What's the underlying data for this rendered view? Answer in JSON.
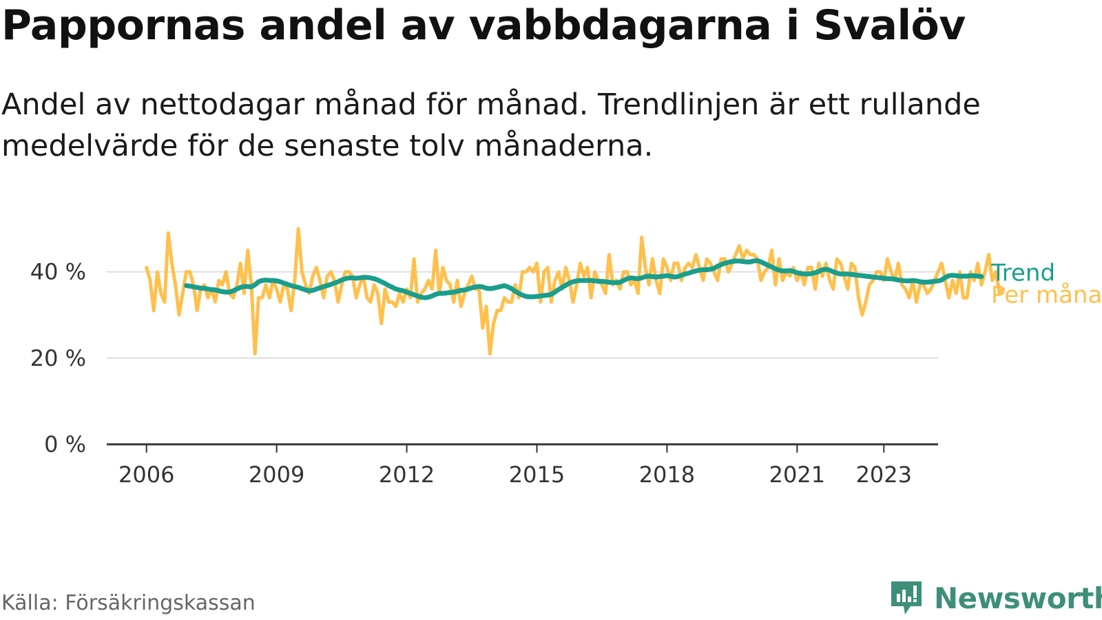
{
  "header": {
    "title": "Pappornas andel av vabbdagarna i Svalöv",
    "subtitle": "Andel av nettodagar månad för månad. Trendlinjen är ett rullande medelvärde för de senaste tolv månaderna."
  },
  "footer": {
    "source": "Källa: Försäkringskassan",
    "brand": "Newsworthy"
  },
  "colors": {
    "monthly": "#ffc04c",
    "trend": "#1a9e8c",
    "grid": "#dddddd",
    "axis": "#333333",
    "brand": "#3e8f7a"
  },
  "chart_data": {
    "type": "line",
    "title": "Pappornas andel av vabbdagarna i Svalöv",
    "xlabel": "",
    "ylabel": "",
    "ylim": [
      0,
      50
    ],
    "xlim": [
      "2005-02",
      "2024-04"
    ],
    "y_ticks": [
      0,
      20,
      40
    ],
    "y_tick_labels": [
      "0 %",
      "20 %",
      "40 %"
    ],
    "x_ticks": [
      "2006-01",
      "2009-01",
      "2012-01",
      "2015-01",
      "2018-01",
      "2021-01",
      "2023-01"
    ],
    "x_tick_labels": [
      "2006",
      "2009",
      "2012",
      "2015",
      "2018",
      "2021",
      "2023"
    ],
    "grid": true,
    "legend": "inline labels at the right end of each line",
    "series": [
      {
        "name": "Per månad",
        "x_start": "2006-01",
        "values": [
          41,
          38,
          31,
          40,
          35,
          33,
          49,
          42,
          37,
          30,
          35,
          40,
          40,
          37,
          31,
          36,
          37,
          34,
          36,
          33,
          38,
          37,
          40,
          35,
          34,
          37,
          42,
          35,
          45,
          37,
          21,
          34,
          34,
          37,
          34,
          38,
          36,
          33,
          37,
          36,
          31,
          38,
          50,
          40,
          37,
          35,
          39,
          41,
          38,
          34,
          39,
          40,
          38,
          33,
          37,
          40,
          40,
          39,
          34,
          37,
          39,
          34,
          33,
          37,
          35,
          28,
          36,
          33,
          33,
          32,
          35,
          33,
          36,
          34,
          43,
          33,
          35,
          36,
          38,
          36,
          45,
          35,
          41,
          38,
          37,
          33,
          38,
          32,
          35,
          37,
          39,
          36,
          36,
          27,
          32,
          21,
          28,
          31,
          31,
          34,
          33,
          33,
          37,
          34,
          40,
          40,
          41,
          40,
          42,
          33,
          40,
          41,
          33,
          38,
          40,
          36,
          41,
          38,
          33,
          37,
          42,
          39,
          41,
          34,
          40,
          38,
          37,
          35,
          44,
          37,
          38,
          36,
          40,
          40,
          37,
          38,
          35,
          48,
          41,
          37,
          43,
          38,
          35,
          43,
          41,
          38,
          42,
          42,
          38,
          41,
          42,
          41,
          44,
          41,
          38,
          43,
          42,
          40,
          38,
          43,
          43,
          40,
          42,
          44,
          46,
          43,
          45,
          44,
          44,
          43,
          38,
          40,
          41,
          45,
          37,
          43,
          38,
          40,
          39,
          41,
          38,
          40,
          37,
          41,
          41,
          36,
          42,
          39,
          42,
          38,
          36,
          43,
          42,
          39,
          36,
          42,
          41,
          34,
          30,
          33,
          37,
          38,
          40,
          40,
          38,
          43,
          40,
          38,
          42,
          37,
          36,
          34,
          38,
          33,
          37,
          37,
          35,
          36,
          38,
          40,
          42,
          38,
          34,
          38,
          35,
          40,
          34,
          34,
          40,
          38,
          42,
          37,
          40,
          44,
          38,
          40,
          35,
          36
        ]
      },
      {
        "name": "Trend",
        "x_start": "2006-12",
        "values": [
          36.8,
          36.7,
          36.5,
          36.4,
          36.2,
          36.2,
          36.0,
          35.9,
          35.8,
          35.6,
          35.4,
          35.3,
          35.3,
          35.6,
          36.0,
          36.4,
          36.6,
          36.6,
          36.5,
          37.0,
          37.7,
          38.0,
          38.1,
          38.0,
          38.0,
          37.9,
          37.7,
          37.4,
          37.1,
          36.8,
          36.6,
          36.4,
          36.1,
          35.8,
          35.6,
          35.7,
          36.0,
          36.3,
          36.6,
          36.8,
          37.1,
          37.4,
          37.7,
          38.1,
          38.4,
          38.6,
          38.6,
          38.5,
          38.6,
          38.7,
          38.7,
          38.6,
          38.4,
          38.1,
          37.7,
          37.3,
          36.8,
          36.4,
          36.0,
          35.8,
          35.6,
          35.3,
          35.0,
          34.7,
          34.4,
          34.1,
          34.0,
          34.1,
          34.4,
          34.8,
          35.0,
          35.0,
          35.1,
          35.2,
          35.3,
          35.5,
          35.7,
          35.8,
          36.0,
          36.3,
          36.5,
          36.6,
          36.5,
          36.2,
          36.1,
          36.2,
          36.4,
          36.6,
          36.8,
          36.5,
          36.1,
          35.5,
          35.0,
          34.6,
          34.3,
          34.2,
          34.2,
          34.3,
          34.4,
          34.5,
          34.6,
          34.8,
          35.3,
          35.9,
          36.4,
          36.9,
          37.4,
          37.7,
          37.9,
          38.0,
          38.0,
          38.0,
          38.0,
          37.9,
          37.8,
          37.8,
          37.7,
          37.6,
          37.5,
          37.5,
          37.6,
          38.0,
          38.4,
          38.6,
          38.5,
          38.4,
          38.6,
          38.9,
          39.0,
          38.9,
          38.8,
          38.9,
          39.0,
          39.1,
          39.0,
          38.8,
          38.9,
          39.2,
          39.5,
          39.7,
          40.0,
          40.2,
          40.4,
          40.5,
          40.5,
          40.6,
          40.8,
          41.3,
          41.7,
          42.0,
          42.2,
          42.4,
          42.5,
          42.5,
          42.4,
          42.3,
          42.3,
          42.5,
          42.6,
          42.3,
          41.9,
          41.5,
          41.1,
          40.7,
          40.4,
          40.2,
          40.2,
          40.3,
          40.1,
          39.8,
          39.6,
          39.5,
          39.5,
          39.6,
          39.8,
          40.1,
          40.5,
          40.6,
          40.4,
          40.0,
          39.7,
          39.5,
          39.5,
          39.5,
          39.4,
          39.3,
          39.2,
          39.1,
          39.0,
          38.9,
          38.8,
          38.7,
          38.6,
          38.5,
          38.4,
          38.4,
          38.3,
          38.1,
          38.0,
          37.9,
          37.9,
          38.0,
          37.9,
          37.7,
          37.6,
          37.6,
          37.7,
          37.8,
          37.9,
          38.1,
          38.7,
          39.1,
          39.2,
          39.1,
          39.0,
          39.0,
          39.0,
          39.1,
          39.1,
          39.0,
          38.9
        ]
      }
    ]
  }
}
